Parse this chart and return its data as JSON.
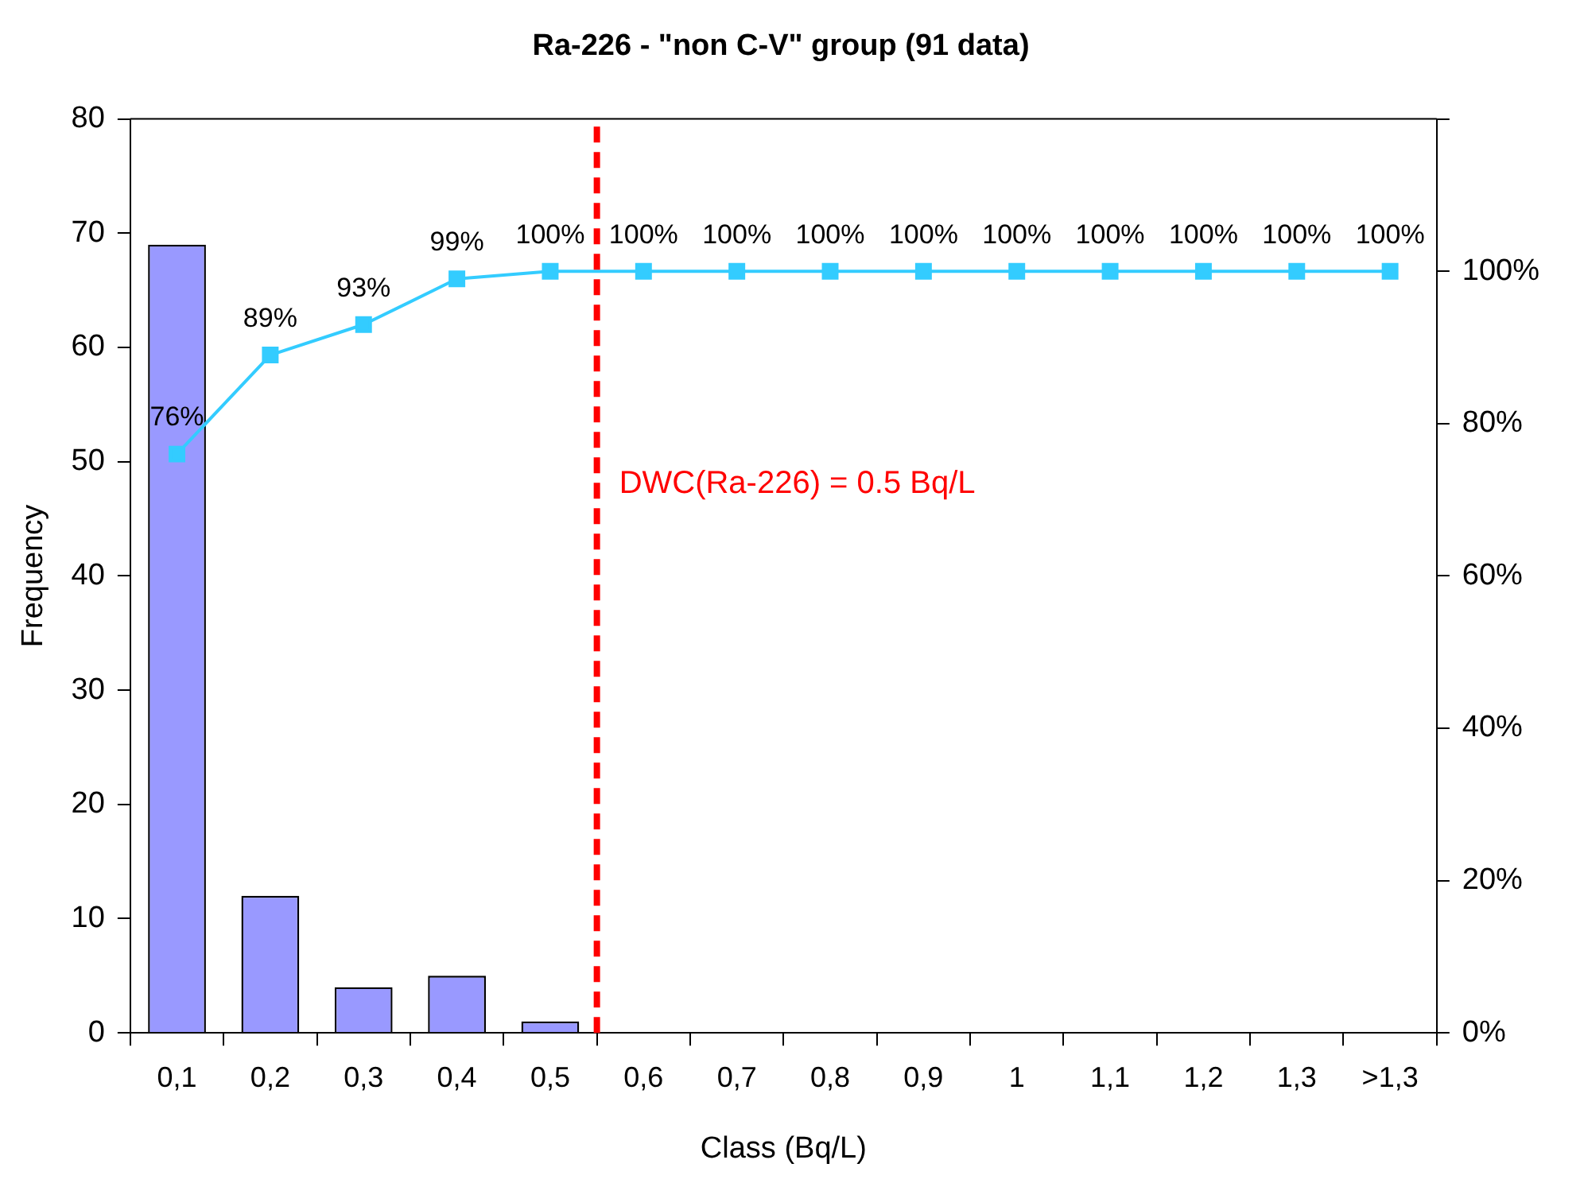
{
  "chart_data": {
    "type": "bar",
    "title": "Ra-226 - \"non C-V\" group (91 data)",
    "xlabel": "Class (Bq/L)",
    "ylabel": "Frequency",
    "categories": [
      "0,1",
      "0,2",
      "0,3",
      "0,4",
      "0,5",
      "0,6",
      "0,7",
      "0,8",
      "0,9",
      "1",
      "1,1",
      "1,2",
      "1,3",
      ">1,3"
    ],
    "series": [
      {
        "color": "#9999ff",
        "values": [
          69,
          12,
          4,
          5,
          1,
          0,
          0,
          0,
          0,
          0,
          0,
          0,
          0,
          0
        ]
      },
      {
        "type": "line",
        "axis": "y2",
        "color": "#33ccff",
        "values": [
          76,
          89,
          93,
          99,
          100,
          100,
          100,
          100,
          100,
          100,
          100,
          100,
          100,
          100
        ],
        "value_labels": [
          "76%",
          "89%",
          "93%",
          "99%",
          "100%",
          "100%",
          "100%",
          "100%",
          "100%",
          "100%",
          "100%",
          "100%",
          "100%",
          "100%"
        ]
      }
    ],
    "ylim": [
      0,
      80
    ],
    "yticks": [
      0,
      10,
      20,
      30,
      40,
      50,
      60,
      70,
      80
    ],
    "y2lim": [
      0,
      120
    ],
    "y2ticks": [
      {
        "value": 0,
        "label": "0%"
      },
      {
        "value": 20,
        "label": "20%"
      },
      {
        "value": 40,
        "label": "40%"
      },
      {
        "value": 60,
        "label": "60%"
      },
      {
        "value": 80,
        "label": "80%"
      },
      {
        "value": 100,
        "label": "100%"
      },
      {
        "value": 120,
        "label": null
      }
    ],
    "grid": false,
    "legend": false,
    "marker": "square",
    "ref_lines": [
      {
        "axis": "x",
        "value": "0,5",
        "label": "DWC(Ra-226) = 0.5 Bq/L",
        "color": "#ff0000",
        "line_style": "dashed"
      }
    ]
  }
}
